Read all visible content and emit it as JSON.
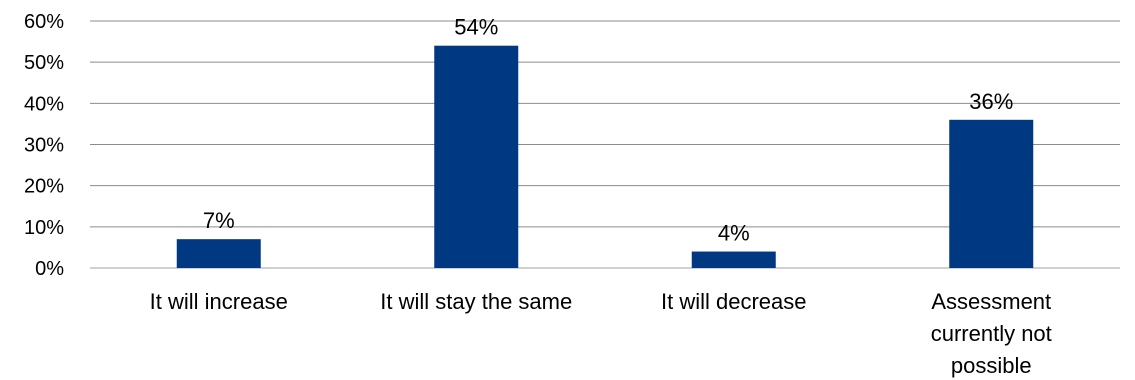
{
  "chart_data": {
    "type": "bar",
    "categories": [
      [
        "It will increase"
      ],
      [
        "It will stay the same"
      ],
      [
        "It will decrease"
      ],
      [
        "Assessment",
        "currently not",
        "possible"
      ]
    ],
    "values": [
      7,
      54,
      4,
      36
    ],
    "data_labels": [
      "7%",
      "54%",
      "4%",
      "36%"
    ],
    "y_ticks": [
      0,
      10,
      20,
      30,
      40,
      50,
      60
    ],
    "y_tick_labels": [
      "0%",
      "10%",
      "20%",
      "30%",
      "40%",
      "50%",
      "60%"
    ],
    "ylim": [
      0,
      60
    ],
    "grid": true,
    "legend": "none",
    "bar_color": "#003882"
  }
}
